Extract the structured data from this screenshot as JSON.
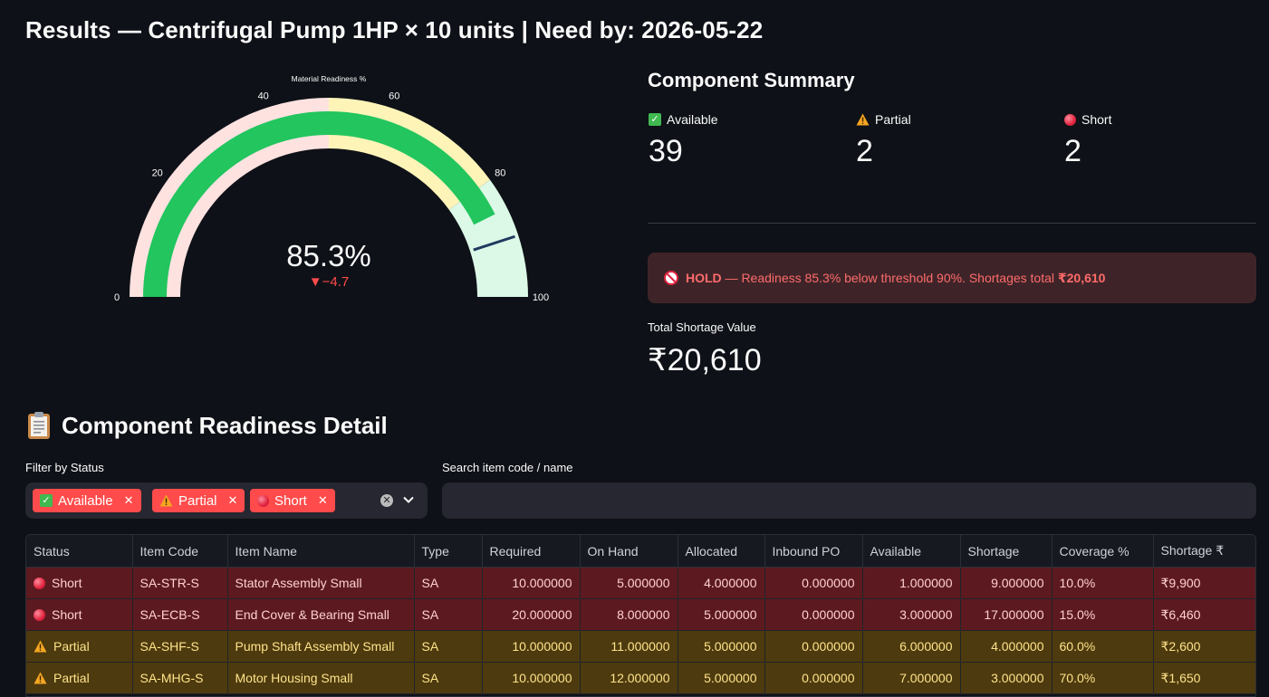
{
  "page": {
    "title": "Results — Centrifugal Pump 1HP × 10 units | Need by: 2026-05-22"
  },
  "gauge": {
    "title": "Material Readiness %",
    "value": 85.3,
    "value_text": "85.3%",
    "delta_text": "▼−4.7",
    "threshold": 90,
    "range": [
      0,
      100
    ],
    "ticks": [
      "0",
      "20",
      "40",
      "60",
      "80",
      "100"
    ],
    "bands": [
      {
        "from": 0,
        "to": 50,
        "color": "#fde2e0"
      },
      {
        "from": 50,
        "to": 80,
        "color": "#fff4b8"
      },
      {
        "from": 80,
        "to": 100,
        "color": "#dcf8e6"
      }
    ],
    "bar_color": "#22c55e",
    "threshold_color": "#1f3a5f",
    "delta_color": "#ff4b4b"
  },
  "summary": {
    "title": "Component Summary",
    "metrics": [
      {
        "icon": "check-icon",
        "label": "Available",
        "value": "39"
      },
      {
        "icon": "warning-icon",
        "label": "Partial",
        "value": "2"
      },
      {
        "icon": "red-circle-icon",
        "label": "Short",
        "value": "2"
      }
    ]
  },
  "alert": {
    "icon": "no-entry-icon",
    "hold": "HOLD",
    "message": " — Readiness 85.3% below threshold 90%. Shortages total ",
    "amount": "₹20,610"
  },
  "shortage": {
    "label": "Total Shortage Value",
    "value": "₹20,610"
  },
  "detail": {
    "title": "Component Readiness Detail",
    "filter_label": "Filter by Status",
    "chips": [
      {
        "icon": "check-icon",
        "label": "Available"
      },
      {
        "icon": "warning-icon",
        "label": "Partial"
      },
      {
        "icon": "red-circle-icon",
        "label": "Short"
      }
    ],
    "search_label": "Search item code / name",
    "search_value": "",
    "search_placeholder": ""
  },
  "table": {
    "columns": [
      "Status",
      "Item Code",
      "Item Name",
      "Type",
      "Required",
      "On Hand",
      "Allocated",
      "Inbound PO",
      "Available",
      "Shortage",
      "Coverage %",
      "Shortage ₹"
    ],
    "rows": [
      {
        "status": "Short",
        "code": "SA-STR-S",
        "name": "Stator Assembly Small",
        "type": "SA",
        "required": "10.000000",
        "on_hand": "5.000000",
        "allocated": "4.000000",
        "inbound": "0.000000",
        "available": "1.000000",
        "shortage": "9.000000",
        "coverage": "10.0%",
        "shortage_value": "₹9,900"
      },
      {
        "status": "Short",
        "code": "SA-ECB-S",
        "name": "End Cover & Bearing Small",
        "type": "SA",
        "required": "20.000000",
        "on_hand": "8.000000",
        "allocated": "5.000000",
        "inbound": "0.000000",
        "available": "3.000000",
        "shortage": "17.000000",
        "coverage": "15.0%",
        "shortage_value": "₹6,460"
      },
      {
        "status": "Partial",
        "code": "SA-SHF-S",
        "name": "Pump Shaft Assembly Small",
        "type": "SA",
        "required": "10.000000",
        "on_hand": "11.000000",
        "allocated": "5.000000",
        "inbound": "0.000000",
        "available": "6.000000",
        "shortage": "4.000000",
        "coverage": "60.0%",
        "shortage_value": "₹2,600"
      },
      {
        "status": "Partial",
        "code": "SA-MHG-S",
        "name": "Motor Housing Small",
        "type": "SA",
        "required": "10.000000",
        "on_hand": "12.000000",
        "allocated": "5.000000",
        "inbound": "0.000000",
        "available": "7.000000",
        "shortage": "3.000000",
        "coverage": "70.0%",
        "shortage_value": "₹1,650"
      }
    ]
  }
}
